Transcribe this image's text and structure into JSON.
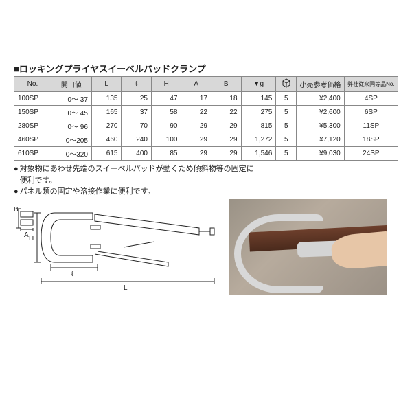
{
  "title": "■ロッキングプライヤスイーベルパッドクランプ",
  "columns": [
    "No.",
    "開口値",
    "L",
    "ℓ",
    "H",
    "A",
    "B",
    "▼g",
    "📦",
    "小売参考価格",
    "弊社従来同等品No."
  ],
  "rows": [
    {
      "no": "100SP",
      "open": "0～ 37",
      "L": "135",
      "l": "25",
      "H": "47",
      "A": "17",
      "B": "18",
      "g": "145",
      "box": "5",
      "price": "¥2,400",
      "eq": "4SP"
    },
    {
      "no": "150SP",
      "open": "0～ 45",
      "L": "165",
      "l": "37",
      "H": "58",
      "A": "22",
      "B": "22",
      "g": "275",
      "box": "5",
      "price": "¥2,600",
      "eq": "6SP"
    },
    {
      "no": "280SP",
      "open": "0～ 96",
      "L": "270",
      "l": "70",
      "H": "90",
      "A": "29",
      "B": "29",
      "g": "815",
      "box": "5",
      "price": "¥5,300",
      "eq": "11SP"
    },
    {
      "no": "460SP",
      "open": "0～205",
      "L": "460",
      "l": "240",
      "H": "100",
      "A": "29",
      "B": "29",
      "g": "1,272",
      "box": "5",
      "price": "¥7,120",
      "eq": "18SP"
    },
    {
      "no": "610SP",
      "open": "0～320",
      "L": "615",
      "l": "400",
      "H": "85",
      "A": "29",
      "B": "29",
      "g": "1,546",
      "box": "5",
      "price": "¥9,030",
      "eq": "24SP"
    }
  ],
  "bullets": [
    "対象物にあわせ先端のスイーベルパッドが動くため傾斜物等の固定に便利です。",
    "パネル類の固定や溶接作業に便利です。"
  ],
  "header_bg": "#d8d8d8",
  "border_color": "#888888",
  "diagram_labels": {
    "B": "B",
    "H": "H",
    "A": "A",
    "l": "ℓ",
    "L": "L"
  },
  "box_icon": "⬚"
}
